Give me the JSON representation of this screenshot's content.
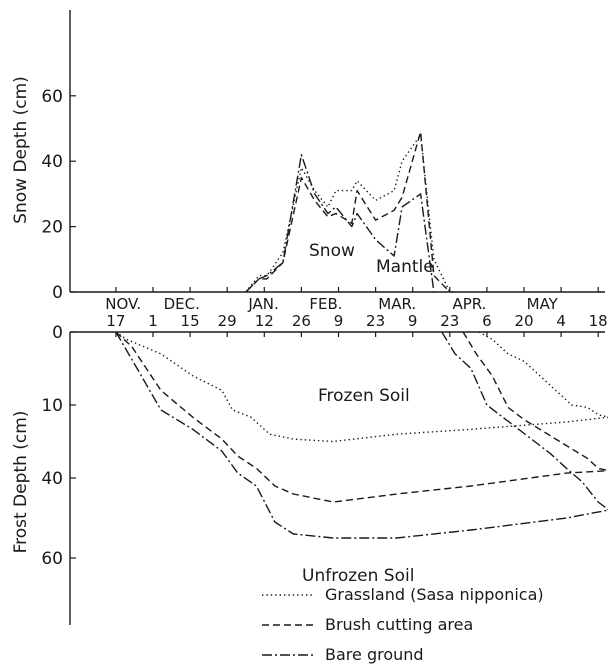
{
  "chart_data": [
    {
      "type": "line",
      "ylabel": "Snow Depth (cm)",
      "yticks": [
        0,
        20,
        40,
        60
      ],
      "ylim": [
        0,
        75
      ],
      "xlim": [
        0,
        192
      ],
      "annotations": [
        "Snow",
        "Mantle"
      ],
      "series": [
        {
          "name": "Grassland (Sasa nipponica)",
          "style": "dotted",
          "x": [
            55,
            60,
            63,
            69,
            76,
            81,
            86,
            89,
            95,
            97,
            104,
            111,
            114,
            121,
            126,
            132,
            134
          ],
          "y": [
            0,
            5,
            5,
            12,
            38,
            31,
            26,
            31,
            31,
            34,
            28,
            31,
            40,
            48,
            10,
            0,
            0
          ]
        },
        {
          "name": "Brush cutting area",
          "style": "dashed",
          "x": [
            55,
            60,
            63,
            69,
            76,
            81,
            86,
            89,
            95,
            97,
            104,
            111,
            114,
            121,
            126,
            132
          ],
          "y": [
            0,
            4,
            4,
            9,
            35,
            28,
            23,
            24,
            21,
            31,
            22,
            25,
            29,
            49,
            5,
            0
          ]
        },
        {
          "name": "Bare ground",
          "style": "dashdot",
          "x": [
            55,
            60,
            63,
            69,
            76,
            81,
            86,
            89,
            95,
            97,
            104,
            111,
            114,
            121,
            126
          ],
          "y": [
            0,
            4,
            5,
            9,
            42,
            30,
            24,
            26,
            20,
            24,
            16,
            11,
            26,
            30,
            0
          ]
        }
      ]
    },
    {
      "type": "line",
      "ylabel": "Frost Depth (cm)",
      "yticks": [
        0,
        10,
        40,
        60
      ],
      "ylim": [
        0,
        75
      ],
      "xlim": [
        0,
        192
      ],
      "annotations": [
        "Frozen Soil",
        "Unfrozen Soil"
      ],
      "series": [
        {
          "name": "Grassland (Sasa nipponica)",
          "style": "dotted",
          "x": [
            6,
            10,
            23,
            35,
            46,
            50,
            57,
            64,
            73,
            88,
            112,
            140,
            176,
            192
          ],
          "y": [
            0,
            1,
            3,
            6,
            8,
            12,
            15,
            22,
            24,
            25,
            22,
            20,
            17,
            15
          ]
        },
        {
          "name": "Brush cutting area",
          "style": "dashed",
          "x": [
            6,
            12,
            23,
            35,
            46,
            52,
            59,
            66,
            73,
            88,
            112,
            140,
            176,
            192
          ],
          "y": [
            0,
            2,
            8,
            15,
            24,
            31,
            36,
            42,
            44,
            46,
            44,
            42,
            38,
            37
          ]
        },
        {
          "name": "Bare ground",
          "style": "dashdot",
          "x": [
            6,
            14,
            23,
            35,
            46,
            52,
            59,
            66,
            73,
            88,
            112,
            140,
            176,
            192
          ],
          "y": [
            0,
            5,
            12,
            20,
            29,
            38,
            42,
            51,
            54,
            55,
            55,
            53,
            50,
            48
          ]
        },
        {
          "name": "Grassland (Sasa nipponica)",
          "style": "dotted",
          "x": [
            143,
            148,
            154,
            160,
            166,
            172,
            178,
            184,
            188,
            192
          ],
          "y": [
            0,
            1,
            3,
            4,
            6,
            8,
            10,
            11,
            14,
            15
          ]
        },
        {
          "name": "Brush cutting area",
          "style": "dashed",
          "x": [
            137,
            142,
            148,
            154,
            160,
            166,
            172,
            178,
            184,
            188,
            192
          ],
          "y": [
            0,
            3,
            6,
            11,
            16,
            20,
            24,
            28,
            32,
            36,
            37
          ]
        },
        {
          "name": "Bare ground",
          "style": "dashdot",
          "x": [
            129,
            134,
            140,
            146,
            152,
            158,
            164,
            170,
            176,
            182,
            188,
            192
          ],
          "y": [
            0,
            3,
            5,
            10,
            15,
            20,
            25,
            30,
            36,
            41,
            46,
            48
          ]
        }
      ]
    }
  ],
  "x_axis": {
    "months": [
      {
        "label": "NOV.",
        "x": 2
      },
      {
        "label": "DEC.",
        "x": 24
      },
      {
        "label": "JAN.",
        "x": 56
      },
      {
        "label": "FEB.",
        "x": 79
      },
      {
        "label": "MAR.",
        "x": 105
      },
      {
        "label": "APR.",
        "x": 133
      },
      {
        "label": "MAY",
        "x": 161
      }
    ],
    "days": [
      {
        "label": "17",
        "x": 6
      },
      {
        "label": "1",
        "x": 20
      },
      {
        "label": "15",
        "x": 34
      },
      {
        "label": "29",
        "x": 48
      },
      {
        "label": "12",
        "x": 62
      },
      {
        "label": "26",
        "x": 76
      },
      {
        "label": "9",
        "x": 90
      },
      {
        "label": "23",
        "x": 104
      },
      {
        "label": "9",
        "x": 118
      },
      {
        "label": "23",
        "x": 132
      },
      {
        "label": "6",
        "x": 146
      },
      {
        "label": "20",
        "x": 160
      },
      {
        "label": "4",
        "x": 174
      },
      {
        "label": "18",
        "x": 188
      }
    ]
  },
  "legend": [
    {
      "label": "Grassland (Sasa nipponica)",
      "style": "dotted"
    },
    {
      "label": "Brush cutting area",
      "style": "dashed"
    },
    {
      "label": "Bare ground",
      "style": "dashdot"
    }
  ],
  "colors": {
    "ink": "#1a1a1a",
    "background": "#ffffff"
  }
}
